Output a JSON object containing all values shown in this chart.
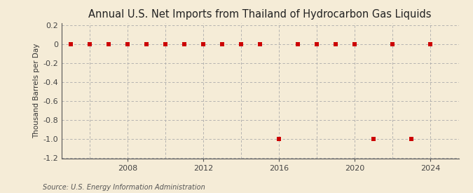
{
  "title": "Annual U.S. Net Imports from Thailand of Hydrocarbon Gas Liquids",
  "ylabel": "Thousand Barrels per Day",
  "source": "Source: U.S. Energy Information Administration",
  "years": [
    2005,
    2006,
    2007,
    2008,
    2009,
    2010,
    2011,
    2012,
    2013,
    2014,
    2015,
    2016,
    2017,
    2018,
    2019,
    2020,
    2021,
    2022,
    2023,
    2024
  ],
  "values": [
    0,
    0,
    0,
    0,
    0,
    0,
    0,
    0,
    0,
    0,
    0,
    -1,
    0,
    0,
    0,
    0,
    -1,
    0,
    -1,
    0
  ],
  "marker_color": "#cc0000",
  "marker_size": 4,
  "grid_color": "#aaaaaa",
  "outer_background": "#f5ecd7",
  "plot_background": "#f5ecd7",
  "xlim": [
    2004.5,
    2025.5
  ],
  "ylim": [
    -1.2,
    0.22
  ],
  "yticks": [
    0.2,
    0.0,
    -0.2,
    -0.4,
    -0.6,
    -0.8,
    -1.0,
    -1.2
  ],
  "xticks": [
    2008,
    2012,
    2016,
    2020,
    2024
  ],
  "vgrid_years": [
    2006,
    2008,
    2010,
    2012,
    2014,
    2016,
    2018,
    2020,
    2022,
    2024
  ],
  "title_fontsize": 10.5,
  "label_fontsize": 7.5,
  "tick_fontsize": 8,
  "source_fontsize": 7
}
